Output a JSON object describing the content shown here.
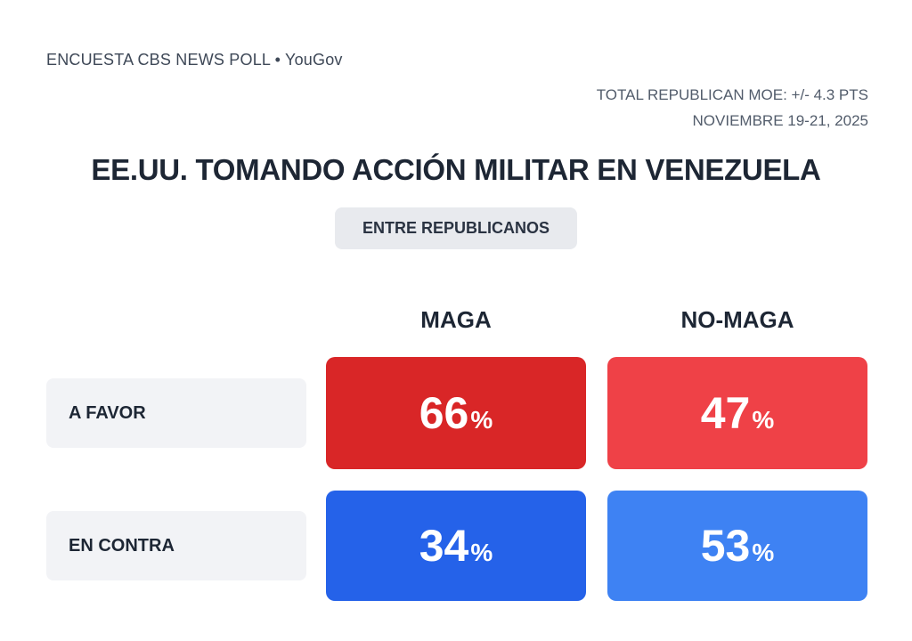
{
  "meta": {
    "source_line": "ENCUESTA CBS NEWS POLL • YouGov",
    "moe_line": "TOTAL REPUBLICAN MOE: +/- 4.3 PTS",
    "date_line": "NOVIEMBRE 19-21, 2025"
  },
  "chart_data": {
    "type": "table",
    "title": "EE.UU. TOMANDO ACCIÓN MILITAR EN VENEZUELA",
    "subtitle": "ENTRE REPUBLICANOS",
    "unit": "%",
    "columns": [
      "MAGA",
      "NO-MAGA"
    ],
    "rows": [
      {
        "label": "A FAVOR",
        "values": [
          66,
          47
        ],
        "colors": [
          "#d92627",
          "#ef4147"
        ]
      },
      {
        "label": "EN CONTRA",
        "values": [
          34,
          53
        ],
        "colors": [
          "#2562e9",
          "#3e82f3"
        ]
      }
    ],
    "layout": {
      "legend": "none",
      "grid": "off",
      "value_range": [
        0,
        100
      ]
    }
  },
  "colors": {
    "background": "#ffffff",
    "title_text": "#1d2634",
    "muted_text": "#525c6b",
    "value_text": "#ffffff",
    "badge_bg": "#e8eaee",
    "label_box_bg": "#f2f3f6"
  }
}
